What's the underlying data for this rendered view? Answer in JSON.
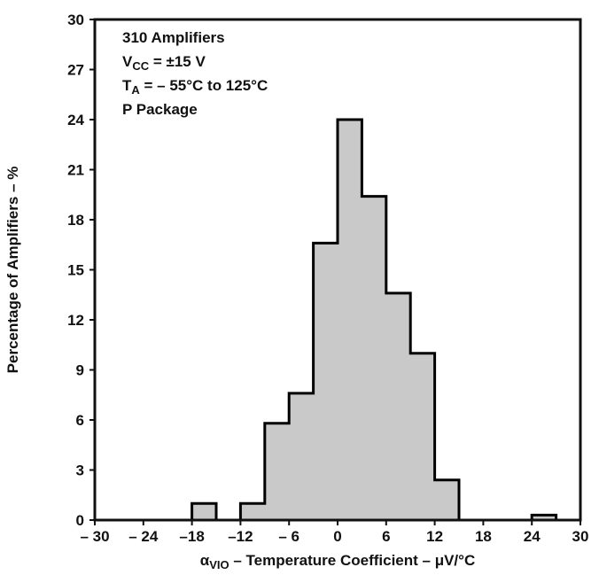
{
  "chart_data": {
    "type": "bar",
    "subtype": "histogram",
    "title": "",
    "annotations_text": [
      "310 Amplifiers",
      "VCC = ±15 V",
      "TA = – 55°C to 125°C",
      "P Package"
    ],
    "annotations": [
      [
        {
          "t": "310 Amplifiers"
        }
      ],
      [
        {
          "t": "V"
        },
        {
          "t": "CC",
          "sub": true
        },
        {
          "t": " = ±15 V"
        }
      ],
      [
        {
          "t": "T"
        },
        {
          "t": "A",
          "sub": true
        },
        {
          "t": " = – 55°C to 125°C"
        }
      ],
      [
        {
          "t": "P Package"
        }
      ]
    ],
    "xlabel": "αVIO – Temperature Coefficient – μV/°C",
    "xlabel_segments": [
      {
        "t": "α"
      },
      {
        "t": "VIO",
        "sub": true
      },
      {
        "t": " – Temperature Coefficient – μV/°C"
      }
    ],
    "ylabel": "Percentage of Amplifiers – %",
    "xlim": [
      -30,
      30
    ],
    "ylim": [
      0,
      30
    ],
    "grid": false,
    "x_tick_values": [
      -30,
      -24,
      -18,
      -12,
      -6,
      0,
      6,
      12,
      18,
      24,
      30
    ],
    "x_tick_labels": [
      "– 30",
      "– 24",
      "–18",
      "–12",
      "– 6",
      "0",
      "6",
      "12",
      "18",
      "24",
      "30"
    ],
    "y_tick_values": [
      0,
      3,
      6,
      9,
      12,
      15,
      18,
      21,
      24,
      27,
      30
    ],
    "y_tick_labels": [
      "0",
      "3",
      "6",
      "9",
      "12",
      "15",
      "18",
      "21",
      "24",
      "27",
      "30"
    ],
    "bin_width": 3,
    "bars": [
      {
        "x": -18,
        "value": 1.0
      },
      {
        "x": -12,
        "value": 1.0
      },
      {
        "x": -9,
        "value": 5.8
      },
      {
        "x": -6,
        "value": 7.6
      },
      {
        "x": -3,
        "value": 16.6
      },
      {
        "x": 0,
        "value": 24.0
      },
      {
        "x": 3,
        "value": 19.4
      },
      {
        "x": 6,
        "value": 13.6
      },
      {
        "x": 9,
        "value": 10.0
      },
      {
        "x": 12,
        "value": 2.4
      },
      {
        "x": 24,
        "value": 0.3
      }
    ],
    "colors": {
      "bar_fill": "#c9c9c9",
      "bar_stroke": "#000000",
      "axis": "#111111",
      "text": "#111111",
      "background": "#ffffff"
    }
  }
}
